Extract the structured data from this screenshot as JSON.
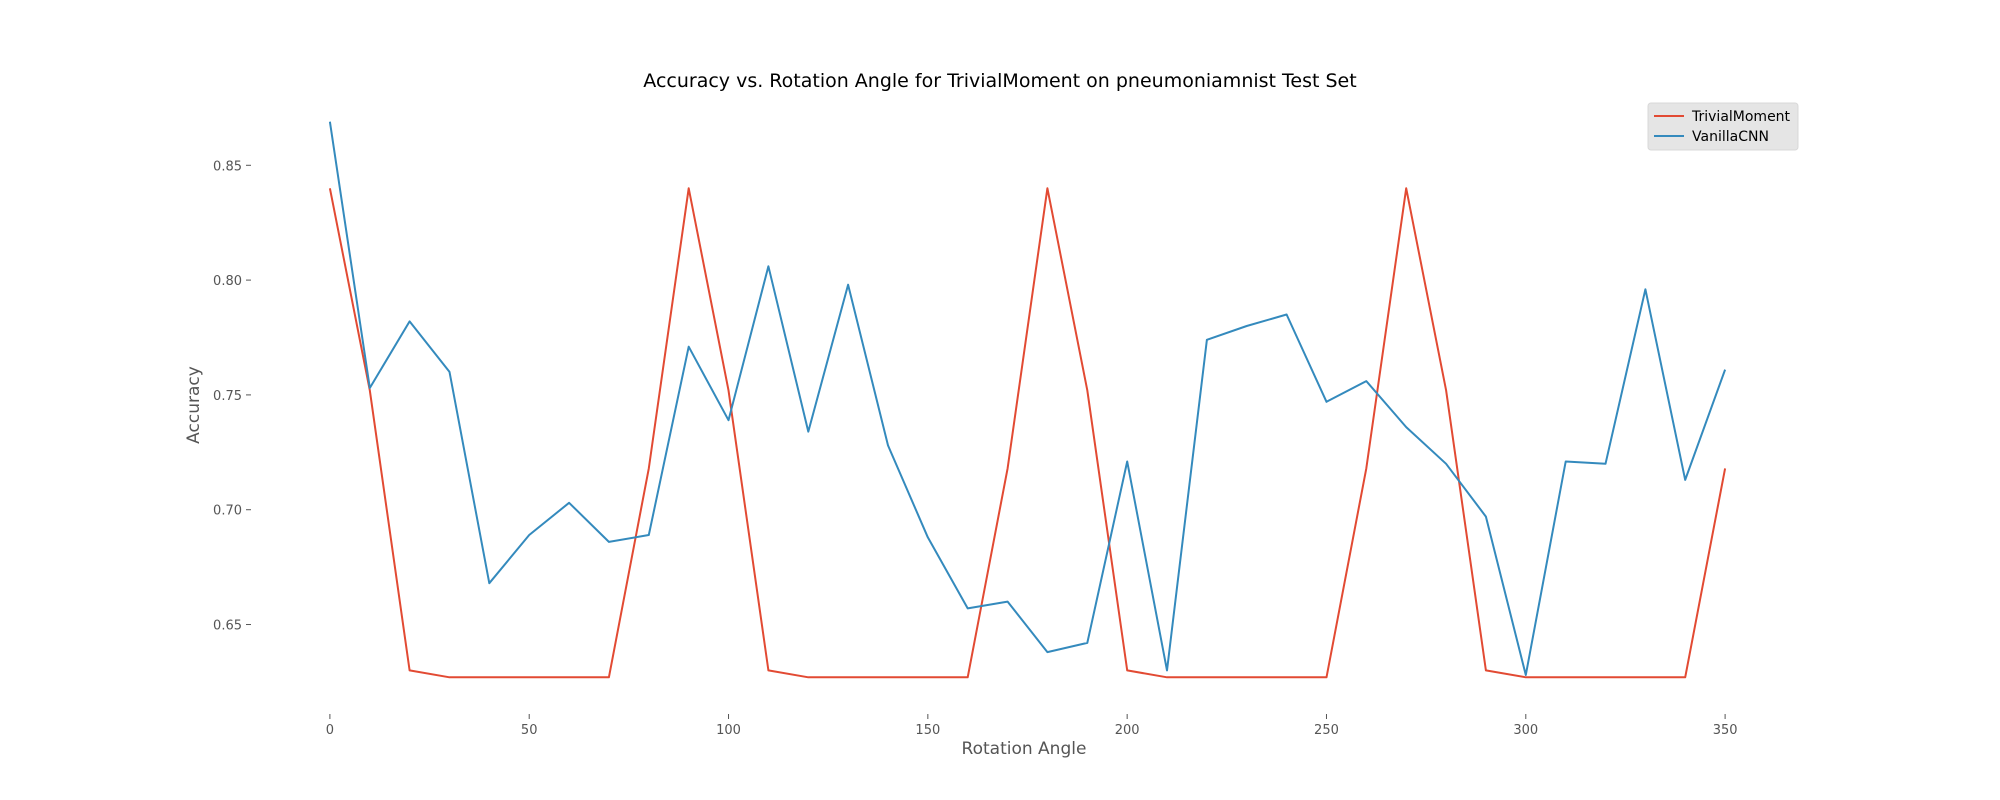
{
  "chart_data": {
    "type": "line",
    "title": "Accuracy vs. Rotation Angle for TrivialMoment on pneumoniamnist Test Set",
    "xlabel": "Rotation Angle",
    "ylabel": "Accuracy",
    "xlim": [
      -8,
      358
    ],
    "ylim": [
      0.618,
      0.878
    ],
    "xticks": [
      0,
      50,
      100,
      150,
      200,
      250,
      300,
      350
    ],
    "xtick_labels": [
      "0",
      "50",
      "100",
      "150",
      "200",
      "250",
      "300",
      "350"
    ],
    "yticks": [
      0.65,
      0.7,
      0.75,
      0.8,
      0.85
    ],
    "ytick_labels": [
      "0.65",
      "0.70",
      "0.75",
      "0.80",
      "0.85"
    ],
    "grid": false,
    "legend_position": "top-right",
    "x": [
      0,
      10,
      20,
      30,
      40,
      50,
      60,
      70,
      80,
      90,
      100,
      110,
      120,
      130,
      140,
      150,
      160,
      170,
      180,
      190,
      200,
      210,
      220,
      230,
      240,
      250,
      260,
      270,
      280,
      290,
      300,
      310,
      320,
      330,
      340,
      350
    ],
    "series": [
      {
        "name": "TrivialMoment",
        "color": "#E24A33",
        "values": [
          0.84,
          0.752,
          0.63,
          0.627,
          0.627,
          0.627,
          0.627,
          0.627,
          0.718,
          0.84,
          0.752,
          0.63,
          0.627,
          0.627,
          0.627,
          0.627,
          0.627,
          0.718,
          0.84,
          0.752,
          0.63,
          0.627,
          0.627,
          0.627,
          0.627,
          0.627,
          0.718,
          0.84,
          0.752,
          0.63,
          0.627,
          0.627,
          0.627,
          0.627,
          0.627,
          0.718
        ]
      },
      {
        "name": "VanillaCNN",
        "color": "#348ABD",
        "values": [
          0.869,
          0.753,
          0.782,
          0.76,
          0.668,
          0.689,
          0.703,
          0.686,
          0.689,
          0.771,
          0.739,
          0.806,
          0.734,
          0.798,
          0.728,
          0.688,
          0.657,
          0.66,
          0.638,
          0.642,
          0.721,
          0.63,
          0.774,
          0.78,
          0.785,
          0.747,
          0.756,
          0.736,
          0.72,
          0.697,
          0.628,
          0.721,
          0.72,
          0.796,
          0.713,
          0.761
        ]
      }
    ]
  }
}
